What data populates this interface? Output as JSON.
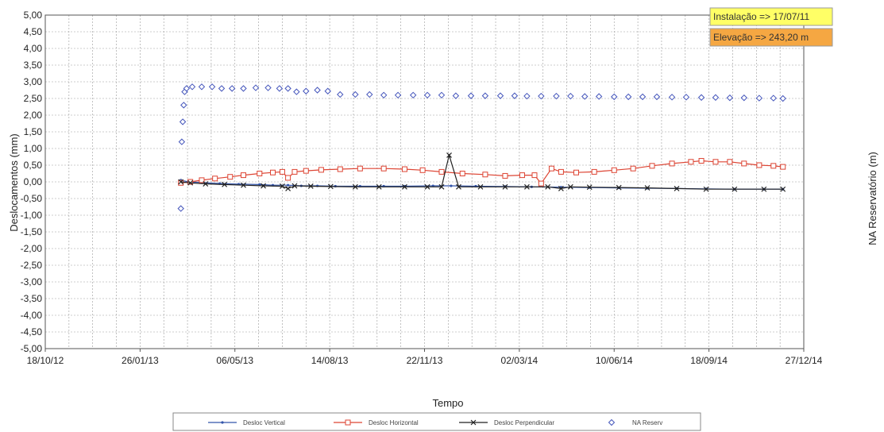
{
  "chart_data": {
    "type": "line",
    "title": "",
    "xlabel": "Tempo",
    "ylabel": "Deslocamentos (mm)",
    "y2label": "NA Reservatório (m)",
    "xlim": [
      "2012-10-18",
      "2014-12-27"
    ],
    "x_ticks": [
      "18/10/12",
      "26/01/13",
      "06/05/13",
      "14/08/13",
      "22/11/13",
      "02/03/14",
      "10/06/14",
      "18/09/14",
      "27/12/14"
    ],
    "ylim": [
      -5.0,
      5.0
    ],
    "y_ticks": [
      "5,00",
      "4,50",
      "4,00",
      "3,50",
      "3,00",
      "2,50",
      "2,00",
      "1,50",
      "1,00",
      "0,50",
      "0,00",
      "-0,50",
      "-1,00",
      "-1,50",
      "-2,00",
      "-2,50",
      "-3,00",
      "-3,50",
      "-4,00",
      "-4,50",
      "-5,00"
    ],
    "grid": true,
    "legend_position": "bottom",
    "annotations": [
      {
        "text": "Instalação  => 17/07/11",
        "color": "#ffff66"
      },
      {
        "text": "Elevação    => 243,20 m",
        "color": "#f5a742"
      }
    ],
    "series": [
      {
        "name": "Desloc Vertical",
        "color": "#3355aa",
        "marker": "dot",
        "points": [
          [
            "2013-03-10",
            0.05
          ],
          [
            "2013-03-18",
            0.0
          ],
          [
            "2013-04-01",
            -0.02
          ],
          [
            "2013-04-20",
            -0.05
          ],
          [
            "2013-05-10",
            -0.07
          ],
          [
            "2013-06-01",
            -0.08
          ],
          [
            "2013-06-15",
            -0.1
          ],
          [
            "2013-07-01",
            -0.1
          ],
          [
            "2013-07-15",
            -0.12
          ],
          [
            "2013-08-01",
            -0.12
          ],
          [
            "2013-08-20",
            -0.13
          ],
          [
            "2013-09-15",
            -0.13
          ],
          [
            "2013-10-10",
            -0.13
          ],
          [
            "2013-11-01",
            -0.13
          ],
          [
            "2013-12-01",
            -0.12
          ],
          [
            "2013-12-20",
            -0.12
          ],
          [
            "2014-01-15",
            -0.13
          ],
          [
            "2014-02-15",
            -0.14
          ],
          [
            "2014-03-15",
            -0.15
          ],
          [
            "2014-04-15",
            -0.16
          ],
          [
            "2014-05-15",
            -0.17
          ],
          [
            "2014-06-15",
            -0.18
          ],
          [
            "2014-07-15",
            -0.19
          ],
          [
            "2014-08-15",
            -0.2
          ],
          [
            "2014-09-15",
            -0.21
          ],
          [
            "2014-10-15",
            -0.22
          ],
          [
            "2014-11-15",
            -0.22
          ],
          [
            "2014-12-05",
            -0.22
          ]
        ]
      },
      {
        "name": "Desloc Horizontal",
        "color": "#dd4433",
        "marker": "square",
        "points": [
          [
            "2013-03-10",
            -0.03
          ],
          [
            "2013-03-20",
            0.0
          ],
          [
            "2013-04-01",
            0.05
          ],
          [
            "2013-04-15",
            0.1
          ],
          [
            "2013-05-01",
            0.15
          ],
          [
            "2013-05-15",
            0.2
          ],
          [
            "2013-06-01",
            0.25
          ],
          [
            "2013-06-15",
            0.28
          ],
          [
            "2013-06-25",
            0.3
          ],
          [
            "2013-07-01",
            0.12
          ],
          [
            "2013-07-08",
            0.3
          ],
          [
            "2013-07-20",
            0.33
          ],
          [
            "2013-08-05",
            0.36
          ],
          [
            "2013-08-25",
            0.38
          ],
          [
            "2013-09-15",
            0.4
          ],
          [
            "2013-10-10",
            0.4
          ],
          [
            "2013-11-01",
            0.38
          ],
          [
            "2013-11-20",
            0.35
          ],
          [
            "2013-12-10",
            0.3
          ],
          [
            "2014-01-01",
            0.25
          ],
          [
            "2014-01-25",
            0.22
          ],
          [
            "2014-02-15",
            0.18
          ],
          [
            "2014-03-05",
            0.2
          ],
          [
            "2014-03-18",
            0.2
          ],
          [
            "2014-03-25",
            -0.05
          ],
          [
            "2014-04-05",
            0.4
          ],
          [
            "2014-04-15",
            0.3
          ],
          [
            "2014-05-01",
            0.28
          ],
          [
            "2014-05-20",
            0.3
          ],
          [
            "2014-06-10",
            0.35
          ],
          [
            "2014-06-30",
            0.4
          ],
          [
            "2014-07-20",
            0.48
          ],
          [
            "2014-08-10",
            0.55
          ],
          [
            "2014-08-30",
            0.6
          ],
          [
            "2014-09-10",
            0.63
          ],
          [
            "2014-09-25",
            0.6
          ],
          [
            "2014-10-10",
            0.6
          ],
          [
            "2014-10-25",
            0.55
          ],
          [
            "2014-11-10",
            0.5
          ],
          [
            "2014-11-25",
            0.48
          ],
          [
            "2014-12-05",
            0.45
          ]
        ]
      },
      {
        "name": "Desloc Perpendicular",
        "color": "#222222",
        "marker": "x",
        "points": [
          [
            "2013-03-10",
            0.0
          ],
          [
            "2013-03-20",
            -0.03
          ],
          [
            "2013-04-05",
            -0.06
          ],
          [
            "2013-04-25",
            -0.08
          ],
          [
            "2013-05-15",
            -0.1
          ],
          [
            "2013-06-05",
            -0.12
          ],
          [
            "2013-06-25",
            -0.13
          ],
          [
            "2013-07-01",
            -0.2
          ],
          [
            "2013-07-08",
            -0.12
          ],
          [
            "2013-07-25",
            -0.13
          ],
          [
            "2013-08-15",
            -0.14
          ],
          [
            "2013-09-10",
            -0.15
          ],
          [
            "2013-10-05",
            -0.15
          ],
          [
            "2013-11-01",
            -0.15
          ],
          [
            "2013-11-25",
            -0.15
          ],
          [
            "2013-12-10",
            -0.15
          ],
          [
            "2013-12-18",
            0.8
          ],
          [
            "2013-12-28",
            -0.15
          ],
          [
            "2014-01-20",
            -0.15
          ],
          [
            "2014-02-15",
            -0.15
          ],
          [
            "2014-03-10",
            -0.15
          ],
          [
            "2014-04-01",
            -0.15
          ],
          [
            "2014-04-15",
            -0.2
          ],
          [
            "2014-04-25",
            -0.15
          ],
          [
            "2014-05-15",
            -0.16
          ],
          [
            "2014-06-15",
            -0.17
          ],
          [
            "2014-07-15",
            -0.18
          ],
          [
            "2014-08-15",
            -0.2
          ],
          [
            "2014-09-15",
            -0.22
          ],
          [
            "2014-10-15",
            -0.22
          ],
          [
            "2014-11-15",
            -0.22
          ],
          [
            "2014-12-05",
            -0.22
          ]
        ]
      },
      {
        "name": "NA Reserv",
        "color": "#4455bb",
        "marker": "diamond",
        "line": false,
        "points": [
          [
            "2013-03-10",
            -0.8
          ],
          [
            "2013-03-11",
            1.2
          ],
          [
            "2013-03-12",
            1.8
          ],
          [
            "2013-03-13",
            2.3
          ],
          [
            "2013-03-14",
            2.7
          ],
          [
            "2013-03-16",
            2.8
          ],
          [
            "2013-03-22",
            2.85
          ],
          [
            "2013-04-01",
            2.85
          ],
          [
            "2013-04-12",
            2.85
          ],
          [
            "2013-04-22",
            2.8
          ],
          [
            "2013-05-03",
            2.8
          ],
          [
            "2013-05-15",
            2.8
          ],
          [
            "2013-05-28",
            2.82
          ],
          [
            "2013-06-10",
            2.82
          ],
          [
            "2013-06-22",
            2.8
          ],
          [
            "2013-07-01",
            2.8
          ],
          [
            "2013-07-10",
            2.7
          ],
          [
            "2013-07-20",
            2.72
          ],
          [
            "2013-08-01",
            2.75
          ],
          [
            "2013-08-12",
            2.72
          ],
          [
            "2013-08-25",
            2.62
          ],
          [
            "2013-09-10",
            2.62
          ],
          [
            "2013-09-25",
            2.62
          ],
          [
            "2013-10-10",
            2.6
          ],
          [
            "2013-10-25",
            2.6
          ],
          [
            "2013-11-10",
            2.6
          ],
          [
            "2013-11-25",
            2.6
          ],
          [
            "2013-12-10",
            2.6
          ],
          [
            "2013-12-25",
            2.58
          ],
          [
            "2014-01-10",
            2.58
          ],
          [
            "2014-01-25",
            2.58
          ],
          [
            "2014-02-10",
            2.58
          ],
          [
            "2014-02-25",
            2.58
          ],
          [
            "2014-03-10",
            2.57
          ],
          [
            "2014-03-25",
            2.57
          ],
          [
            "2014-04-10",
            2.57
          ],
          [
            "2014-04-25",
            2.57
          ],
          [
            "2014-05-10",
            2.56
          ],
          [
            "2014-05-25",
            2.56
          ],
          [
            "2014-06-10",
            2.55
          ],
          [
            "2014-06-25",
            2.55
          ],
          [
            "2014-07-10",
            2.55
          ],
          [
            "2014-07-25",
            2.55
          ],
          [
            "2014-08-10",
            2.54
          ],
          [
            "2014-08-25",
            2.54
          ],
          [
            "2014-09-10",
            2.53
          ],
          [
            "2014-09-25",
            2.53
          ],
          [
            "2014-10-10",
            2.52
          ],
          [
            "2014-10-25",
            2.52
          ],
          [
            "2014-11-10",
            2.51
          ],
          [
            "2014-11-25",
            2.51
          ],
          [
            "2014-12-05",
            2.5
          ]
        ]
      }
    ]
  }
}
